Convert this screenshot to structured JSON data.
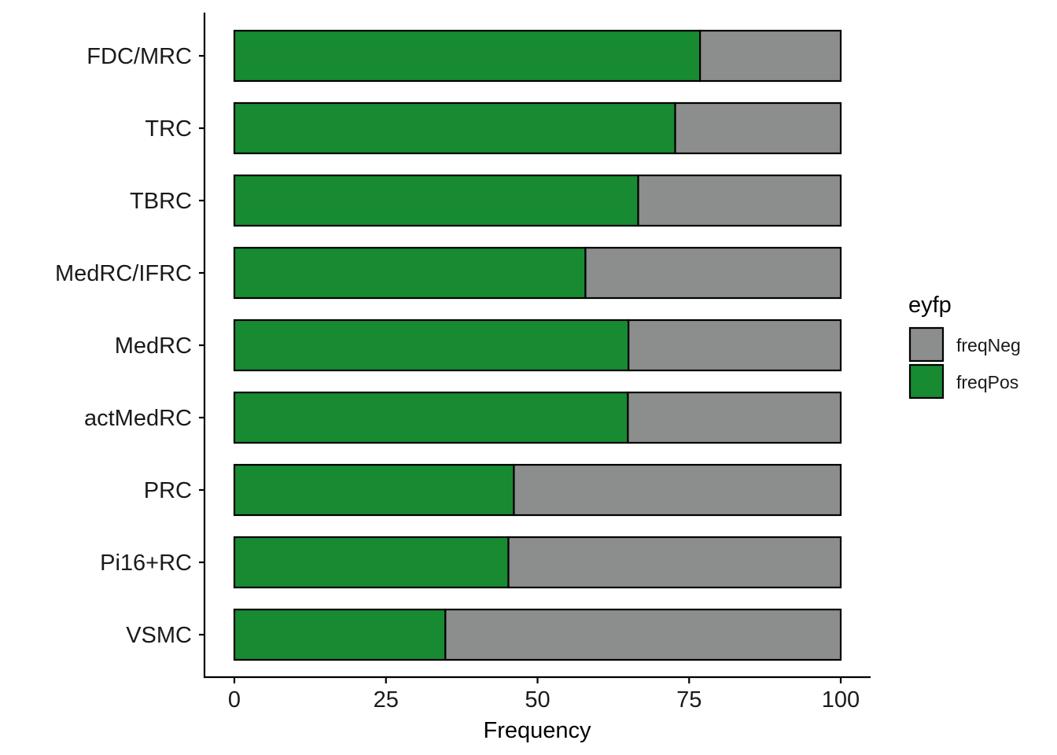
{
  "chart_data": {
    "type": "bar",
    "orientation": "horizontal",
    "stacked": true,
    "categories": [
      "FDC/MRC",
      "TRC",
      "TBRC",
      "MedRC/IFRC",
      "MedRC",
      "actMedRC",
      "PRC",
      "Pi16+RC",
      "VSMC"
    ],
    "series": [
      {
        "name": "freqPos",
        "values": [
          76.8,
          72.7,
          66.6,
          57.9,
          65.0,
          64.9,
          46.1,
          45.2,
          34.8
        ],
        "color": "#178A32"
      },
      {
        "name": "freqNeg",
        "values": [
          23.2,
          27.3,
          33.4,
          42.1,
          35.0,
          35.1,
          53.9,
          54.8,
          65.2
        ],
        "color": "#8C8E8D"
      }
    ],
    "xlabel": "Frequency",
    "ylabel": "",
    "xlim": [
      -2.5,
      105
    ],
    "xticks": [
      0,
      25,
      50,
      75,
      100
    ],
    "xtick_labels": [
      "0",
      "25",
      "50",
      "75",
      "100"
    ],
    "grid": false,
    "legend": {
      "title": "eyfp",
      "placement": "right",
      "entries": [
        {
          "name": "freqNeg",
          "color": "#8C8E8D"
        },
        {
          "name": "freqPos",
          "color": "#178A32"
        }
      ]
    }
  }
}
